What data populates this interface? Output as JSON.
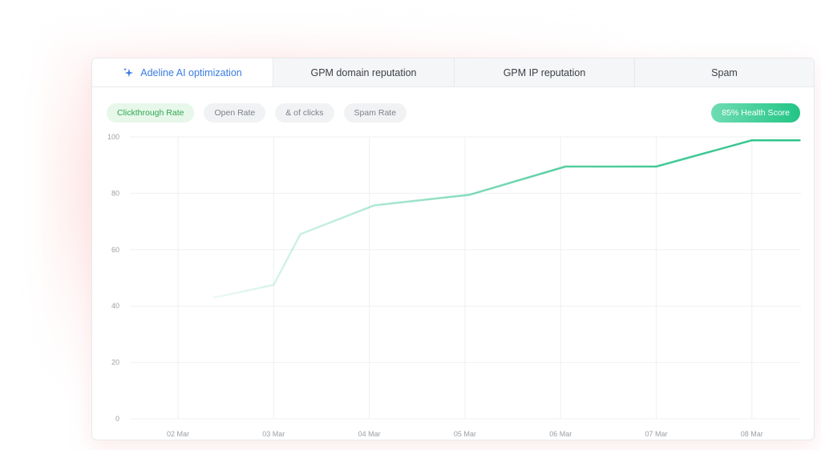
{
  "tabs": [
    {
      "label": "Adeline AI optimization",
      "icon": "sparkle-icon",
      "active": true
    },
    {
      "label": "GPM domain reputation",
      "active": false
    },
    {
      "label": "GPM IP reputation",
      "active": false
    },
    {
      "label": "Spam",
      "active": false
    }
  ],
  "filters": [
    {
      "label": "Clickthrough Rate",
      "active": true
    },
    {
      "label": "Open Rate",
      "active": false
    },
    {
      "label": "& of clicks",
      "active": false
    },
    {
      "label": "Spam Rate",
      "active": false
    }
  ],
  "health_badge": "85% Health Score",
  "colors": {
    "accent": "#3a7be0",
    "line": "#2cc38a",
    "active_pill_text": "#2fa84f"
  },
  "chart_data": {
    "type": "line",
    "categories": [
      "02 Mar",
      "03 Mar",
      "04 Mar",
      "05 Mar",
      "06 Mar",
      "07 Mar",
      "08 Mar"
    ],
    "yticks": [
      "100",
      "80",
      "60",
      "40",
      "20",
      "0"
    ],
    "ylim": [
      0,
      100
    ],
    "grid": true,
    "series": [
      {
        "points": [
          {
            "x": 2.38,
            "y": 43
          },
          {
            "x": 3.0,
            "y": 47.5
          },
          {
            "x": 3.28,
            "y": 65.5
          },
          {
            "x": 4.05,
            "y": 75.7
          },
          {
            "x": 5.05,
            "y": 79.5
          },
          {
            "x": 6.05,
            "y": 89.5
          },
          {
            "x": 7.0,
            "y": 89.5
          },
          {
            "x": 8.0,
            "y": 98.8
          },
          {
            "x": 8.5,
            "y": 98.8
          }
        ]
      }
    ]
  }
}
